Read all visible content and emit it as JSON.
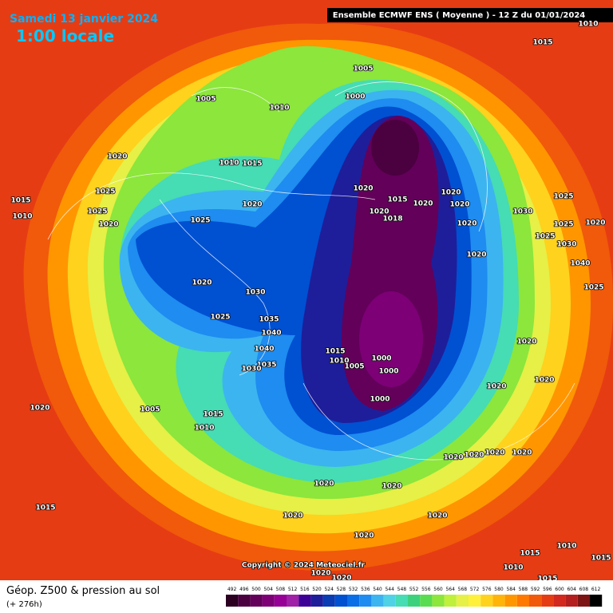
{
  "header": {
    "date": "Samedi 13 janvier 2024",
    "time": "1:00 locale",
    "model": "Ensemble ECMWF ENS  ( Moyenne )  - 12 Z du 01/01/2024"
  },
  "map": {
    "copyright": "Copyright © 2024 Meteociel.fr",
    "isobar_labels": [
      "1015",
      "1005",
      "1005",
      "1010",
      "1000",
      "1020",
      "1010",
      "1015",
      "1025",
      "1015",
      "1010",
      "1025",
      "1020",
      "1020",
      "1025",
      "1020",
      "1020",
      "1020",
      "1020",
      "1015",
      "1018",
      "1020",
      "1020",
      "1020",
      "1025",
      "1030",
      "1025",
      "1020",
      "1025",
      "1030",
      "1040",
      "1025",
      "1020",
      "1030",
      "1035",
      "1040",
      "1025",
      "1040",
      "1035",
      "1030",
      "1015",
      "1010",
      "1005",
      "1000",
      "1000",
      "1000",
      "1020",
      "1020",
      "1020",
      "1005",
      "1015",
      "1010",
      "1020",
      "1015",
      "1020",
      "1020",
      "1020",
      "1020",
      "1020",
      "1020",
      "1020",
      "1020",
      "1020",
      "1015",
      "1010",
      "1015",
      "1010",
      "1015",
      "1020",
      "1020",
      "1010"
    ]
  },
  "footer": {
    "title": "Géop. Z500 & pression au sol",
    "lead": "(+ 276h)"
  },
  "colorbar": {
    "values": [
      492,
      496,
      500,
      504,
      508,
      512,
      516,
      520,
      524,
      528,
      532,
      536,
      540,
      544,
      548,
      552,
      556,
      560,
      564,
      568,
      572,
      576,
      580,
      584,
      588,
      592,
      596,
      600,
      604,
      608,
      612
    ],
    "colors": [
      "#2b0021",
      "#4b0040",
      "#63005a",
      "#7d0076",
      "#960096",
      "#a020a8",
      "#3c0096",
      "#1e1e9a",
      "#0a3cb4",
      "#0050d2",
      "#0a6ee6",
      "#1e8cf0",
      "#3cb4f0",
      "#50d2e6",
      "#46dcb4",
      "#3cd27d",
      "#5adc50",
      "#8ce63c",
      "#bef03c",
      "#e6f046",
      "#fff03c",
      "#ffd21e",
      "#ffb40a",
      "#ff9600",
      "#ff7800",
      "#f05a0a",
      "#e63c14",
      "#d2281e",
      "#b41e1e",
      "#7d1414",
      "#000000"
    ]
  }
}
